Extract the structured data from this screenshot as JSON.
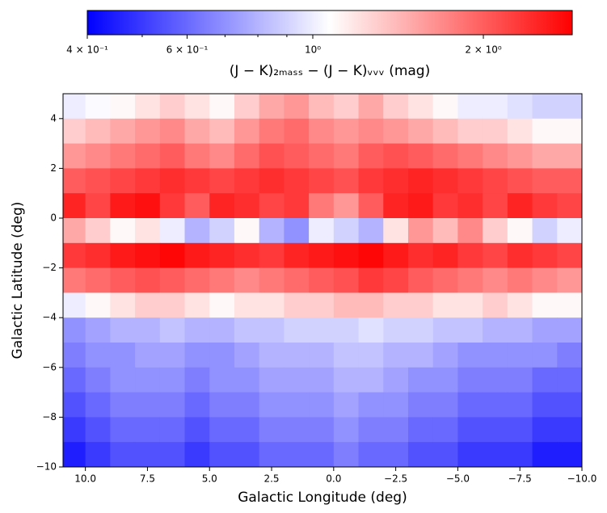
{
  "chart_data": {
    "type": "heatmap",
    "xlabel": "Galactic Longitude (deg)",
    "ylabel": "Galactic Latitude (deg)",
    "colorbar_label": "(J − K)₂ₘₐₛₛ − (J − K)ᵥᵥᵥ (mag)",
    "colormap": "bwr",
    "clog": true,
    "clim": [
      0.4,
      2.87
    ],
    "cticks": [
      {
        "value": 0.4,
        "label": "4 × 10⁻¹"
      },
      {
        "value": 0.6,
        "label": "6 × 10⁻¹"
      },
      {
        "value": 1,
        "label": "10⁰"
      },
      {
        "value": 2,
        "label": "2 × 10⁰"
      }
    ],
    "cminorticks": [
      0.5,
      0.7,
      0.8,
      0.9
    ],
    "xlim": [
      10.9,
      -10
    ],
    "ylim": [
      -10,
      5
    ],
    "xticks": [
      {
        "value": 10,
        "label": "10.0"
      },
      {
        "value": 7.5,
        "label": "7.5"
      },
      {
        "value": 5,
        "label": "5.0"
      },
      {
        "value": 2.5,
        "label": "2.5"
      },
      {
        "value": 0,
        "label": "0.0"
      },
      {
        "value": -2.5,
        "label": "−2.5"
      },
      {
        "value": -5,
        "label": "−5.0"
      },
      {
        "value": -7.5,
        "label": "−7.5"
      },
      {
        "value": -10,
        "label": "−10.0"
      }
    ],
    "yticks": [
      {
        "value": -10,
        "label": "−10"
      },
      {
        "value": -8,
        "label": "−8"
      },
      {
        "value": -6,
        "label": "−6"
      },
      {
        "value": -4,
        "label": "−4"
      },
      {
        "value": -2,
        "label": "−2"
      },
      0,
      2,
      4
    ],
    "x": [
      10.5,
      9.5,
      8.5,
      7.5,
      6.5,
      5.5,
      4.5,
      3.5,
      2.5,
      1.5,
      0.5,
      -0.5,
      -1.5,
      -2.5,
      -3.5,
      -4.5,
      -5.5,
      -6.5,
      -7.5,
      -8.5,
      -9.5
    ],
    "y": [
      4.5,
      3.5,
      2.5,
      1.5,
      0.5,
      -0.5,
      -1.5,
      -2.5,
      -3.5,
      -4.5,
      -5.5,
      -6.5,
      -7.5,
      -8.5,
      -9.5
    ],
    "values": [
      [
        1.0,
        1.05,
        1.1,
        1.2,
        1.3,
        1.2,
        1.1,
        1.3,
        1.5,
        1.6,
        1.4,
        1.3,
        1.5,
        1.3,
        1.2,
        1.1,
        1.0,
        1.0,
        0.95,
        0.9,
        0.9
      ],
      [
        1.3,
        1.4,
        1.5,
        1.6,
        1.7,
        1.5,
        1.4,
        1.6,
        1.8,
        1.9,
        1.7,
        1.6,
        1.7,
        1.6,
        1.5,
        1.4,
        1.3,
        1.3,
        1.2,
        1.1,
        1.1
      ],
      [
        1.6,
        1.7,
        1.8,
        1.9,
        2.0,
        1.8,
        1.7,
        1.9,
        2.1,
        2.0,
        1.9,
        1.8,
        2.0,
        2.1,
        2.0,
        1.9,
        1.8,
        1.7,
        1.6,
        1.5,
        1.5
      ],
      [
        2.0,
        2.1,
        2.2,
        2.3,
        2.4,
        2.3,
        2.2,
        2.3,
        2.4,
        2.3,
        2.2,
        2.1,
        2.3,
        2.4,
        2.5,
        2.4,
        2.3,
        2.2,
        2.1,
        2.0,
        2.0
      ],
      [
        2.5,
        2.2,
        2.6,
        2.7,
        2.3,
        2.0,
        2.5,
        2.4,
        2.2,
        2.3,
        1.8,
        1.6,
        2.0,
        2.5,
        2.6,
        2.3,
        2.4,
        2.2,
        2.5,
        2.3,
        2.2
      ],
      [
        1.5,
        1.3,
        1.1,
        1.2,
        1.0,
        0.8,
        0.9,
        1.1,
        0.8,
        0.7,
        1.0,
        0.9,
        0.8,
        1.2,
        1.6,
        1.4,
        1.7,
        1.3,
        1.1,
        0.9,
        1.0
      ],
      [
        2.3,
        2.4,
        2.6,
        2.7,
        2.8,
        2.6,
        2.5,
        2.4,
        2.3,
        2.5,
        2.6,
        2.7,
        2.8,
        2.6,
        2.4,
        2.5,
        2.3,
        2.2,
        2.4,
        2.3,
        2.2
      ],
      [
        1.8,
        1.9,
        2.0,
        2.1,
        2.0,
        1.9,
        1.8,
        1.7,
        1.8,
        1.9,
        2.0,
        2.1,
        2.3,
        2.2,
        2.0,
        1.9,
        1.8,
        1.7,
        1.8,
        1.7,
        1.6
      ],
      [
        1.0,
        1.1,
        1.2,
        1.3,
        1.3,
        1.2,
        1.1,
        1.2,
        1.2,
        1.3,
        1.3,
        1.4,
        1.4,
        1.3,
        1.3,
        1.2,
        1.2,
        1.3,
        1.2,
        1.1,
        1.1
      ],
      [
        0.7,
        0.75,
        0.8,
        0.8,
        0.85,
        0.8,
        0.8,
        0.85,
        0.85,
        0.9,
        0.9,
        0.9,
        0.95,
        0.9,
        0.9,
        0.85,
        0.85,
        0.8,
        0.8,
        0.75,
        0.75
      ],
      [
        0.65,
        0.7,
        0.7,
        0.75,
        0.75,
        0.7,
        0.7,
        0.75,
        0.8,
        0.8,
        0.8,
        0.85,
        0.85,
        0.8,
        0.8,
        0.75,
        0.7,
        0.7,
        0.7,
        0.7,
        0.65
      ],
      [
        0.6,
        0.65,
        0.7,
        0.7,
        0.7,
        0.65,
        0.7,
        0.7,
        0.75,
        0.75,
        0.75,
        0.8,
        0.8,
        0.75,
        0.7,
        0.7,
        0.65,
        0.65,
        0.65,
        0.6,
        0.6
      ],
      [
        0.55,
        0.6,
        0.65,
        0.65,
        0.65,
        0.6,
        0.65,
        0.65,
        0.7,
        0.7,
        0.7,
        0.75,
        0.7,
        0.7,
        0.65,
        0.65,
        0.6,
        0.6,
        0.6,
        0.55,
        0.55
      ],
      [
        0.5,
        0.55,
        0.6,
        0.6,
        0.6,
        0.55,
        0.6,
        0.6,
        0.65,
        0.65,
        0.65,
        0.7,
        0.65,
        0.65,
        0.6,
        0.6,
        0.55,
        0.55,
        0.55,
        0.5,
        0.5
      ],
      [
        0.45,
        0.5,
        0.55,
        0.55,
        0.55,
        0.5,
        0.55,
        0.55,
        0.6,
        0.6,
        0.6,
        0.65,
        0.6,
        0.6,
        0.55,
        0.55,
        0.5,
        0.5,
        0.5,
        0.45,
        0.45
      ]
    ]
  }
}
